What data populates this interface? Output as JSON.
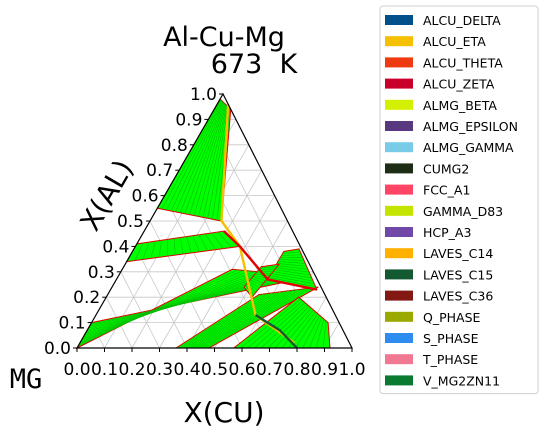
{
  "chart_data": {
    "type": "ternary-phase-diagram",
    "title": "Al-Cu-Mg",
    "subtitle": "673  K",
    "xlabel": "X(CU)",
    "ylabel": "X(AL)",
    "corner_label": "MG",
    "xlim": [
      0,
      1
    ],
    "ylim": [
      0,
      1
    ],
    "grid": true,
    "legend_position": "outside-right",
    "axis_ticks": [
      "0.0",
      "0.1",
      "0.2",
      "0.3",
      "0.4",
      "0.5",
      "0.6",
      "0.7",
      "0.8",
      "0.9",
      "1.0"
    ],
    "legend": [
      {
        "name": "ALCU_DELTA",
        "color": "#00508c"
      },
      {
        "name": "ALCU_ETA",
        "color": "#f4c000"
      },
      {
        "name": "ALCU_THETA",
        "color": "#ee3a10"
      },
      {
        "name": "ALCU_ZETA",
        "color": "#c8002a"
      },
      {
        "name": "ALMG_BETA",
        "color": "#d2f000"
      },
      {
        "name": "ALMG_EPSILON",
        "color": "#5a3880"
      },
      {
        "name": "ALMG_GAMMA",
        "color": "#78cce8"
      },
      {
        "name": "CUMG2",
        "color": "#1e2e14"
      },
      {
        "name": "FCC_A1",
        "color": "#ff4466"
      },
      {
        "name": "GAMMA_D83",
        "color": "#c4e400"
      },
      {
        "name": "HCP_A3",
        "color": "#7048a8"
      },
      {
        "name": "LAVES_C14",
        "color": "#ffb000"
      },
      {
        "name": "LAVES_C15",
        "color": "#145a30"
      },
      {
        "name": "LAVES_C36",
        "color": "#821812"
      },
      {
        "name": "Q_PHASE",
        "color": "#9aa800"
      },
      {
        "name": "S_PHASE",
        "color": "#2c8cf0"
      },
      {
        "name": "T_PHASE",
        "color": "#f07890"
      },
      {
        "name": "V_MG2ZN11",
        "color": "#0a7a30"
      }
    ],
    "two_phase_region_color": "#00ff00",
    "tie_line_color": "#e00000",
    "regions": [
      {
        "points": [
          [
            0.0,
            0.98
          ],
          [
            0.0,
            0.55
          ],
          [
            0.26,
            0.5
          ],
          [
            0.06,
            0.94
          ]
        ]
      },
      {
        "points": [
          [
            0.0,
            0.41
          ],
          [
            0.0,
            0.34
          ],
          [
            0.38,
            0.4
          ],
          [
            0.29,
            0.46
          ]
        ]
      },
      {
        "points": [
          [
            0.0,
            0.0
          ],
          [
            0.4,
            0.31
          ],
          [
            0.7,
            0.28
          ],
          [
            0.0,
            0.1
          ]
        ]
      },
      {
        "points": [
          [
            0.36,
            0.0
          ],
          [
            0.55,
            0.21
          ],
          [
            0.75,
            0.24
          ],
          [
            0.48,
            0.0
          ]
        ]
      },
      {
        "points": [
          [
            0.57,
            0.0
          ],
          [
            0.7,
            0.2
          ],
          [
            0.86,
            0.1
          ],
          [
            0.92,
            0.0
          ]
        ]
      },
      {
        "points": [
          [
            0.55,
            0.27
          ],
          [
            0.75,
            0.23
          ],
          [
            0.6,
            0.39
          ],
          [
            0.55,
            0.38
          ]
        ]
      },
      {
        "points": [
          [
            0.48,
            0.24
          ],
          [
            0.53,
            0.2
          ],
          [
            0.56,
            0.33
          ],
          [
            0.5,
            0.32
          ]
        ]
      }
    ],
    "phase_boundaries": [
      {
        "points": [
          [
            0.04,
            0.96
          ],
          [
            0.26,
            0.5
          ],
          [
            0.38,
            0.4
          ],
          [
            0.58,
            0.13
          ],
          [
            0.78,
            0.02
          ]
        ],
        "color": "#f4c000"
      },
      {
        "points": [
          [
            0.29,
            0.46
          ],
          [
            0.38,
            0.4
          ],
          [
            0.55,
            0.27
          ],
          [
            0.75,
            0.23
          ]
        ],
        "color": "#e00000"
      },
      {
        "points": [
          [
            0.58,
            0.13
          ],
          [
            0.7,
            0.07
          ],
          [
            0.8,
            0.0
          ]
        ],
        "color": "#145a30"
      }
    ]
  }
}
